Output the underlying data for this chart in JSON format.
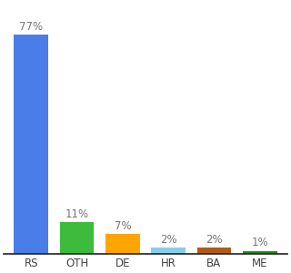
{
  "categories": [
    "RS",
    "OTH",
    "DE",
    "HR",
    "BA",
    "ME"
  ],
  "values": [
    77,
    11,
    7,
    2,
    2,
    1
  ],
  "bar_colors": [
    "#4a7de8",
    "#3dbb3d",
    "#ffa500",
    "#87ceeb",
    "#b05a1a",
    "#228B22"
  ],
  "labels": [
    "77%",
    "11%",
    "7%",
    "2%",
    "2%",
    "1%"
  ],
  "ylim": [
    0,
    88
  ],
  "background_color": "#ffffff",
  "label_fontsize": 8.5,
  "tick_fontsize": 8.5,
  "label_color": "#777777"
}
